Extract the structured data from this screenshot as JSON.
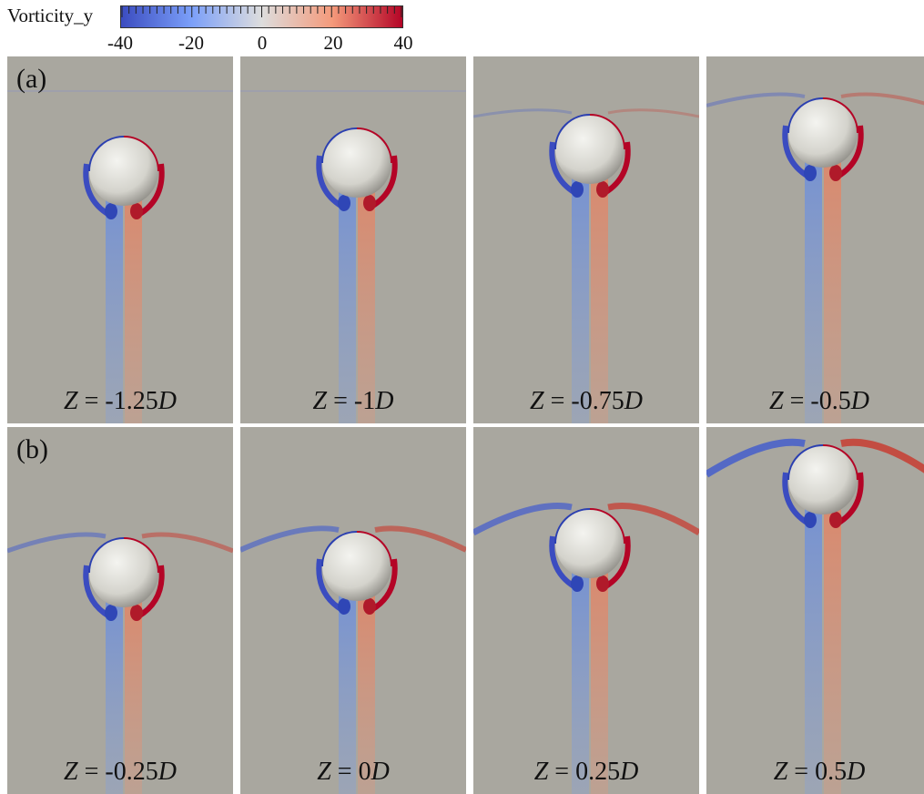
{
  "colorbar": {
    "title": "Vorticity_y",
    "min": -40,
    "max": 40,
    "ticks": [
      "-40",
      "-20",
      "0",
      "20",
      "40"
    ],
    "colors": {
      "negative": "#3b4cc0",
      "mid": "#dddddd",
      "positive": "#b40426"
    }
  },
  "background_color": "#a9a79f",
  "rows": [
    {
      "label": "(a)"
    },
    {
      "label": "(b)"
    }
  ],
  "panels": [
    {
      "row": 0,
      "z_var": "Z",
      "eq": " = ",
      "z_value": "-1.25",
      "z_unit": "D"
    },
    {
      "row": 0,
      "z_var": "Z",
      "eq": " = ",
      "z_value": "-1",
      "z_unit": "D"
    },
    {
      "row": 0,
      "z_var": "Z",
      "eq": " = ",
      "z_value": "-0.75",
      "z_unit": "D"
    },
    {
      "row": 0,
      "z_var": "Z",
      "eq": " = ",
      "z_value": "-0.5",
      "z_unit": "D"
    },
    {
      "row": 1,
      "z_var": "Z",
      "eq": " = ",
      "z_value": "-0.25",
      "z_unit": "D"
    },
    {
      "row": 1,
      "z_var": "Z",
      "eq": " = ",
      "z_value": "0",
      "z_unit": "D"
    },
    {
      "row": 1,
      "z_var": "Z",
      "eq": " = ",
      "z_value": "0.25",
      "z_unit": "D"
    },
    {
      "row": 1,
      "z_var": "Z",
      "eq": " = ",
      "z_value": "0.5",
      "z_unit": "D"
    }
  ]
}
